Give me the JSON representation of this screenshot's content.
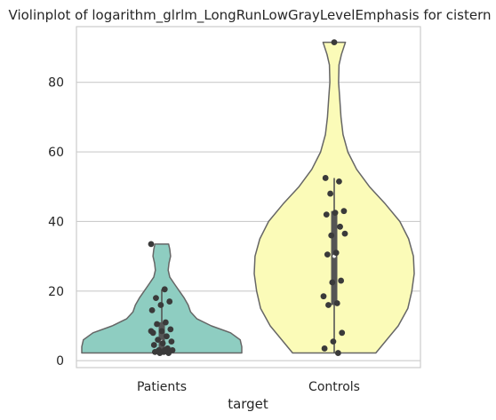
{
  "chart_data": {
    "type": "violin",
    "title": "Violinplot of logarithm_glrlm_LongRunLowGrayLevelEmphasis for cistern",
    "xlabel": "target",
    "ylabel": "",
    "ylim": [
      -2,
      96
    ],
    "yticks": [
      0,
      20,
      40,
      60,
      80
    ],
    "grid": true,
    "categories": [
      "Patients",
      "Controls"
    ],
    "colors": {
      "Patients": "#8ecdc1",
      "Controls": "#fbfbb8",
      "outline": "#666666",
      "points": "#3a3a3a",
      "box": "#555555",
      "grid": "#cccccc",
      "frame": "#cccccc"
    },
    "series": [
      {
        "category": "Patients",
        "min": 2.2,
        "max": 33.5,
        "quartiles": [
          3.5,
          5.5,
          11.0
        ],
        "whiskers": [
          2.2,
          20.5
        ],
        "density": [
          [
            2.2,
            1.0
          ],
          [
            4.0,
            1.0
          ],
          [
            6.0,
            0.98
          ],
          [
            8.0,
            0.86
          ],
          [
            10.0,
            0.62
          ],
          [
            12.0,
            0.44
          ],
          [
            14.0,
            0.36
          ],
          [
            16.0,
            0.33
          ],
          [
            18.0,
            0.28
          ],
          [
            20.0,
            0.22
          ],
          [
            22.0,
            0.16
          ],
          [
            24.0,
            0.1
          ],
          [
            26.0,
            0.08
          ],
          [
            28.0,
            0.09
          ],
          [
            30.0,
            0.11
          ],
          [
            32.0,
            0.1
          ],
          [
            33.5,
            0.085
          ]
        ],
        "points": [
          33.5,
          20.5,
          18.0,
          17.0,
          16.0,
          14.5,
          11.0,
          10.5,
          9.0,
          8.5,
          8.0,
          7.0,
          6.0,
          5.5,
          5.0,
          4.5,
          3.5,
          3.0,
          3.0,
          2.5,
          2.5,
          2.2,
          2.2,
          8.5,
          3.0
        ]
      },
      {
        "category": "Controls",
        "min": 2.2,
        "max": 91.5,
        "quartiles": [
          16.0,
          30.0,
          43.0
        ],
        "whiskers": [
          2.2,
          52.5
        ],
        "density": [
          [
            2.2,
            0.52
          ],
          [
            5.0,
            0.62
          ],
          [
            10.0,
            0.8
          ],
          [
            15.0,
            0.92
          ],
          [
            20.0,
            0.97
          ],
          [
            25.0,
            1.0
          ],
          [
            30.0,
            0.99
          ],
          [
            35.0,
            0.93
          ],
          [
            40.0,
            0.82
          ],
          [
            45.0,
            0.64
          ],
          [
            50.0,
            0.44
          ],
          [
            55.0,
            0.28
          ],
          [
            60.0,
            0.17
          ],
          [
            65.0,
            0.11
          ],
          [
            70.0,
            0.085
          ],
          [
            75.0,
            0.07
          ],
          [
            80.0,
            0.055
          ],
          [
            85.0,
            0.06
          ],
          [
            88.0,
            0.09
          ],
          [
            91.5,
            0.14
          ]
        ],
        "points": [
          91.5,
          52.5,
          51.5,
          48.0,
          43.0,
          42.5,
          42.0,
          38.5,
          36.0,
          36.5,
          31.0,
          30.5,
          23.0,
          22.5,
          18.5,
          16.5,
          16.0,
          8.0,
          5.5,
          3.5,
          2.2
        ]
      }
    ]
  }
}
